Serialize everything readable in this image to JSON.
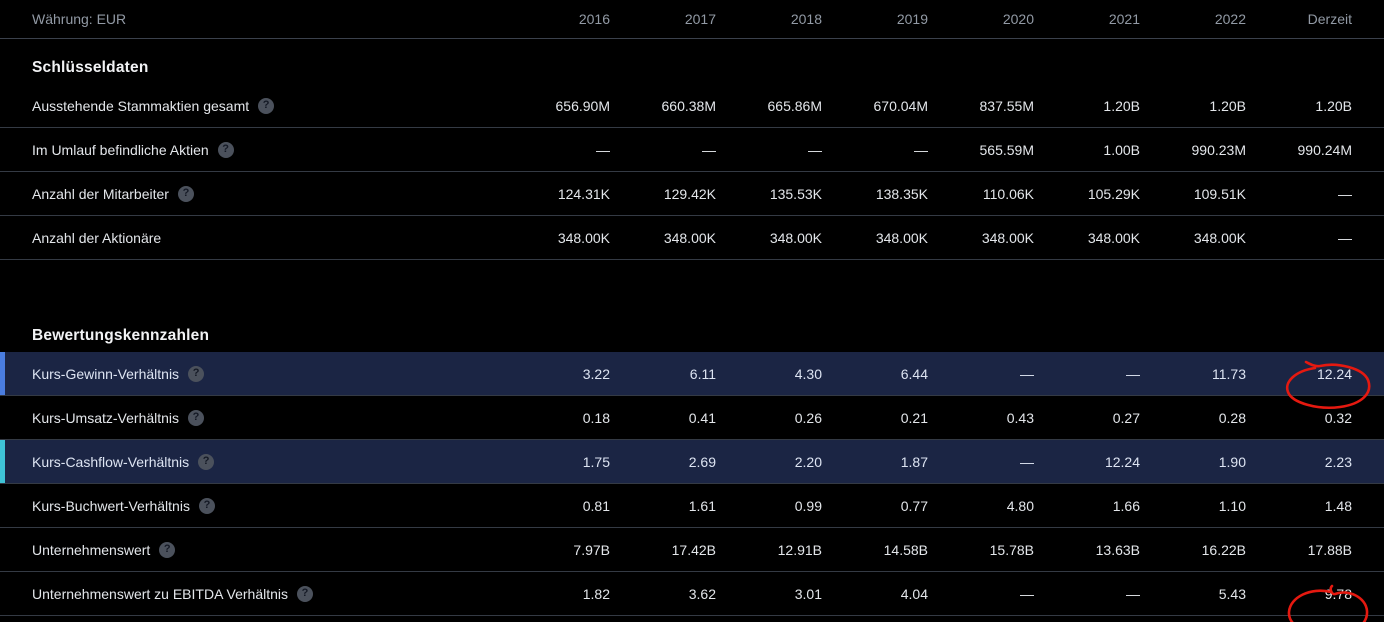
{
  "header": {
    "currency_label": "Währung: EUR",
    "columns": [
      "2016",
      "2017",
      "2018",
      "2019",
      "2020",
      "2021",
      "2022",
      "Derzeit"
    ]
  },
  "help_icon_glyph": "?",
  "colors": {
    "background": "#000000",
    "text_primary": "#e3e6ea",
    "text_muted": "#929aa5",
    "divider": "#343a44",
    "highlight_row_bg": "#1b2544",
    "accent_blue": "#4a7de0",
    "accent_cyan": "#3fc3d6",
    "annotation_red": "#e51910",
    "help_icon_bg": "#4b515c",
    "help_icon_glyph_color": "#141925"
  },
  "sections": [
    {
      "title": "Schlüsseldaten",
      "rows": [
        {
          "label": "Ausstehende Stammaktien gesamt",
          "help": true,
          "values": [
            "656.90M",
            "660.38M",
            "665.86M",
            "670.04M",
            "837.55M",
            "1.20B",
            "1.20B",
            "1.20B"
          ]
        },
        {
          "label": "Im Umlauf befindliche Aktien",
          "help": true,
          "values": [
            "—",
            "—",
            "—",
            "—",
            "565.59M",
            "1.00B",
            "990.23M",
            "990.24M"
          ]
        },
        {
          "label": "Anzahl der Mitarbeiter",
          "help": true,
          "values": [
            "124.31K",
            "129.42K",
            "135.53K",
            "138.35K",
            "110.06K",
            "105.29K",
            "109.51K",
            "—"
          ]
        },
        {
          "label": "Anzahl der Aktionäre",
          "help": false,
          "values": [
            "348.00K",
            "348.00K",
            "348.00K",
            "348.00K",
            "348.00K",
            "348.00K",
            "348.00K",
            "—"
          ]
        }
      ]
    },
    {
      "title": "Bewertungskennzahlen",
      "rows": [
        {
          "label": "Kurs-Gewinn-Verhältnis",
          "help": true,
          "highlight": "blue",
          "circled_col": 7,
          "circle_variant": "a",
          "values": [
            "3.22",
            "6.11",
            "4.30",
            "6.44",
            "—",
            "—",
            "11.73",
            "12.24"
          ]
        },
        {
          "label": "Kurs-Umsatz-Verhältnis",
          "help": true,
          "values": [
            "0.18",
            "0.41",
            "0.26",
            "0.21",
            "0.43",
            "0.27",
            "0.28",
            "0.32"
          ]
        },
        {
          "label": "Kurs-Cashflow-Verhältnis",
          "help": true,
          "highlight": "cyan",
          "values": [
            "1.75",
            "2.69",
            "2.20",
            "1.87",
            "—",
            "12.24",
            "1.90",
            "2.23"
          ]
        },
        {
          "label": "Kurs-Buchwert-Verhältnis",
          "help": true,
          "values": [
            "0.81",
            "1.61",
            "0.99",
            "0.77",
            "4.80",
            "1.66",
            "1.10",
            "1.48"
          ]
        },
        {
          "label": "Unternehmenswert",
          "help": true,
          "values": [
            "7.97B",
            "17.42B",
            "12.91B",
            "14.58B",
            "15.78B",
            "13.63B",
            "16.22B",
            "17.88B"
          ]
        },
        {
          "label": "Unternehmenswert zu EBITDA Verhältnis",
          "help": true,
          "circled_col": 7,
          "circle_variant": "b",
          "values": [
            "1.82",
            "3.62",
            "3.01",
            "4.04",
            "—",
            "—",
            "5.43",
            "9.78"
          ]
        }
      ]
    }
  ]
}
